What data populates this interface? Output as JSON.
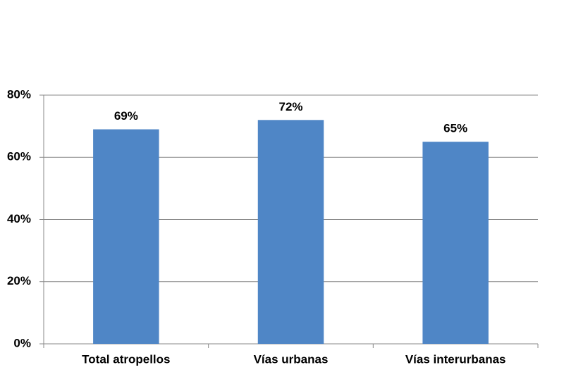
{
  "chart_data": {
    "type": "bar",
    "categories": [
      "Total atropellos",
      "Vías urbanas",
      "Vías interurbanas"
    ],
    "values": [
      69,
      72,
      65
    ],
    "value_labels": [
      "69%",
      "72%",
      "65%"
    ],
    "color": "#4f86c6",
    "ylim": [
      0,
      80
    ],
    "yticks": [
      {
        "value": 0,
        "label": "0%"
      },
      {
        "value": 20,
        "label": "20%"
      },
      {
        "value": 40,
        "label": "40%"
      },
      {
        "value": 60,
        "label": "60%"
      },
      {
        "value": 80,
        "label": "80%"
      }
    ],
    "grid": true
  }
}
